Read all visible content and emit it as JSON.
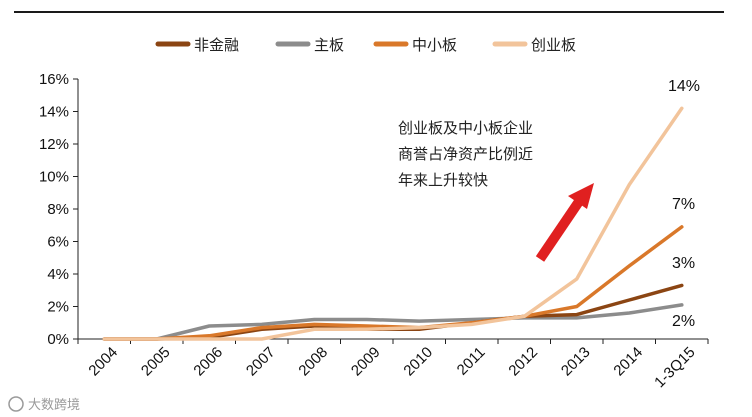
{
  "chart_data": {
    "type": "line",
    "categories": [
      "2004",
      "2005",
      "2006",
      "2007",
      "2008",
      "2009",
      "2010",
      "2011",
      "2012",
      "2013",
      "2014",
      "1-3Q15"
    ],
    "ylim": [
      0,
      16
    ],
    "yticks": [
      "0%",
      "2%",
      "4%",
      "6%",
      "8%",
      "10%",
      "12%",
      "14%",
      "16%"
    ],
    "grid": false,
    "legend_position": "top",
    "series": [
      {
        "name": "非金融",
        "color": "#8B4513",
        "values": [
          0,
          0,
          0.1,
          0.6,
          0.8,
          0.6,
          0.6,
          1.0,
          1.4,
          1.5,
          2.4,
          3.3
        ]
      },
      {
        "name": "主板",
        "color": "#8C8C8C",
        "values": [
          0,
          0,
          0.8,
          0.9,
          1.2,
          1.2,
          1.1,
          1.2,
          1.3,
          1.3,
          1.6,
          2.1
        ]
      },
      {
        "name": "中小板",
        "color": "#D9782A",
        "values": [
          0,
          0,
          0.2,
          0.7,
          0.9,
          0.8,
          0.7,
          1.0,
          1.4,
          2.0,
          4.5,
          6.9
        ]
      },
      {
        "name": "创业板",
        "color": "#F2C49B",
        "values": [
          0,
          0,
          0,
          0,
          0.6,
          0.6,
          0.7,
          0.9,
          1.4,
          3.7,
          9.5,
          14.2
        ]
      }
    ],
    "end_labels": [
      "3%",
      "2%",
      "7%",
      "14%"
    ],
    "annotation": [
      "创业板及中小板企业",
      "商誉占净资产比例近",
      "年来上升较快"
    ]
  },
  "watermark": "大数跨境"
}
